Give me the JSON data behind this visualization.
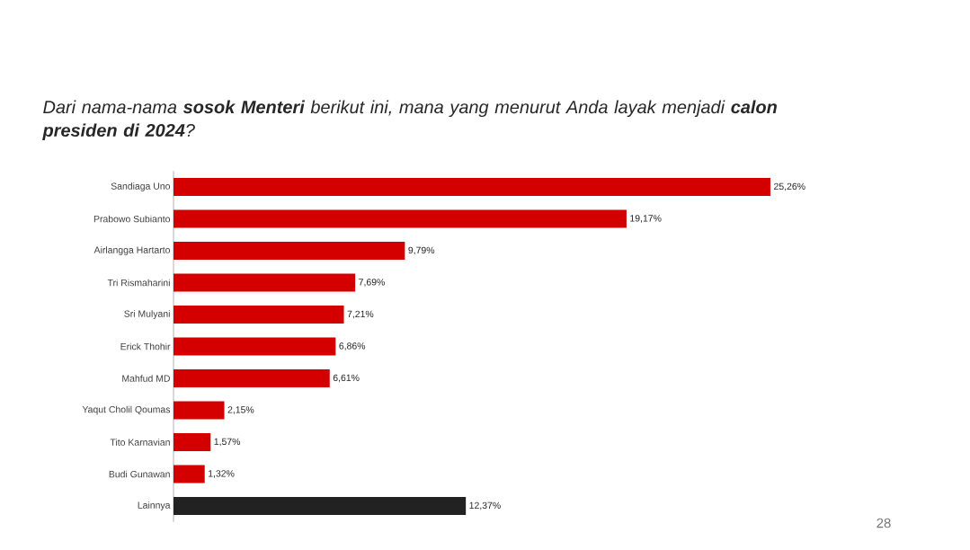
{
  "chart_data": {
    "type": "bar",
    "orientation": "horizontal",
    "title": "Dari nama-nama **sosok Menteri** berikut ini, mana yang menurut Anda layak menjadi **calon presiden di 2024**?",
    "categories": [
      "Sandiaga Uno",
      "Prabowo Subianto",
      "Airlangga Hartarto",
      "Tri Rismaharini",
      "Sri Mulyani",
      "Erick Thohir",
      "Mahfud MD",
      "Yaqut Cholil Qoumas",
      "Tito Karnavian",
      "Budi Gunawan",
      "Lainnya"
    ],
    "values": [
      25.26,
      19.17,
      9.79,
      7.69,
      7.21,
      6.86,
      6.61,
      2.15,
      1.57,
      1.32,
      12.37
    ],
    "colors": [
      "#d40000",
      "#d40000",
      "#d40000",
      "#d40000",
      "#d40000",
      "#d40000",
      "#d40000",
      "#d40000",
      "#d40000",
      "#d40000",
      "#222222"
    ],
    "value_labels": [
      "25,26%",
      "19,17%",
      "9,79%",
      "7,69%",
      "7,21%",
      "6,86%",
      "6,61%",
      "2,15%",
      "1,57%",
      "1,32%",
      "12,37%"
    ],
    "annotations": [
      "28"
    ]
  }
}
